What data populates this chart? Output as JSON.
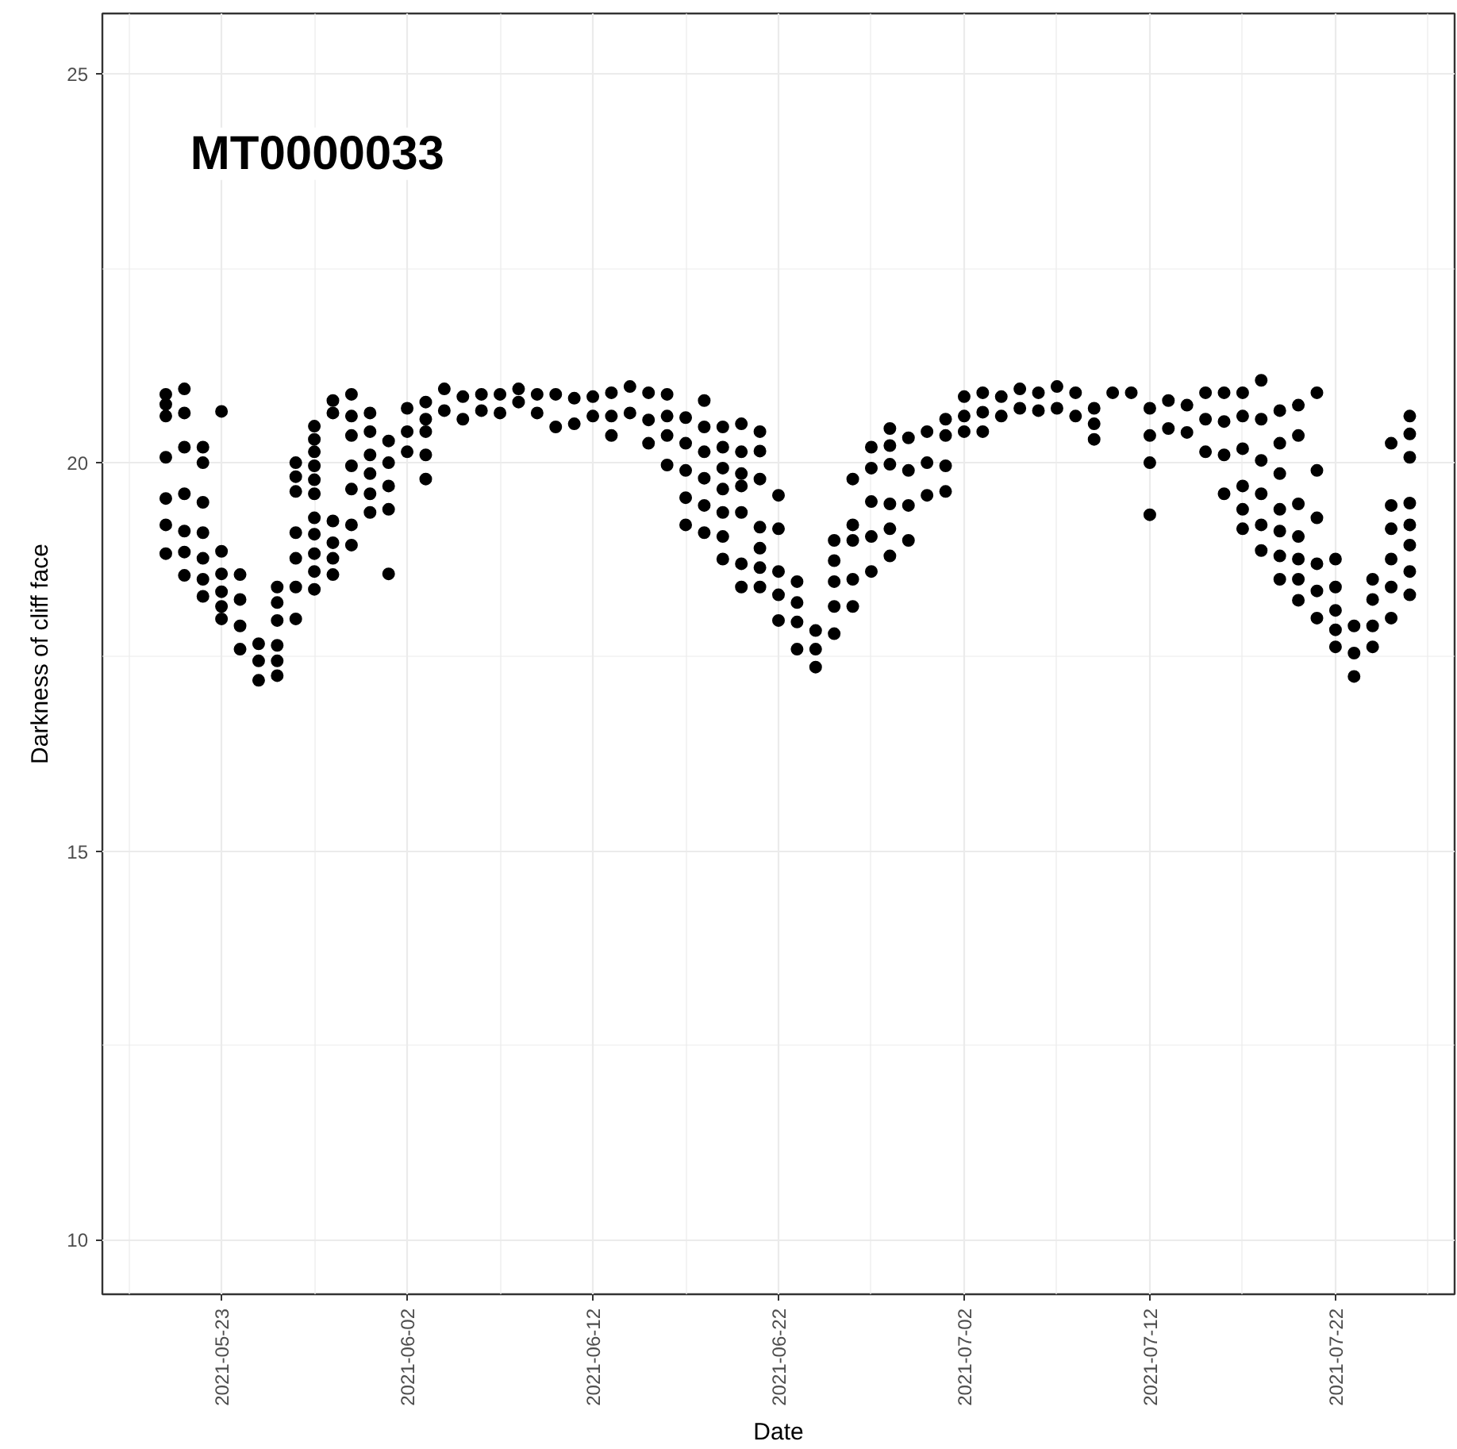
{
  "chart_data": {
    "type": "scatter",
    "title": "MT0000033",
    "xlabel": "Date",
    "ylabel": "Darkness of cliff face",
    "xlim": [
      "2021-05-16T14:00",
      "2021-07-28T10:00"
    ],
    "xticks": [
      "2021-05-23",
      "2021-06-02",
      "2021-06-12",
      "2021-06-22",
      "2021-07-02",
      "2021-07-12",
      "2021-07-22"
    ],
    "ylim": [
      9.3,
      25.78
    ],
    "yticks": [
      10,
      15,
      20,
      25
    ],
    "grid": true,
    "marker": "circle",
    "series": [
      {
        "color": "#000000",
        "x": [
          "2021-05-20",
          "2021-05-20",
          "2021-05-20",
          "2021-05-20",
          "2021-05-20",
          "2021-05-20",
          "2021-05-20",
          "2021-05-21",
          "2021-05-21",
          "2021-05-21",
          "2021-05-21",
          "2021-05-21",
          "2021-05-21",
          "2021-05-21",
          "2021-05-22",
          "2021-05-22",
          "2021-05-22",
          "2021-05-22",
          "2021-05-22",
          "2021-05-22",
          "2021-05-22",
          "2021-05-23",
          "2021-05-23",
          "2021-05-23",
          "2021-05-23",
          "2021-05-23",
          "2021-05-23",
          "2021-05-24",
          "2021-05-24",
          "2021-05-24",
          "2021-05-24",
          "2021-05-25",
          "2021-05-25",
          "2021-05-25",
          "2021-05-26",
          "2021-05-26",
          "2021-05-26",
          "2021-05-26",
          "2021-05-26",
          "2021-05-26",
          "2021-05-27",
          "2021-05-27",
          "2021-05-27",
          "2021-05-27",
          "2021-05-27",
          "2021-05-27",
          "2021-05-27",
          "2021-05-28",
          "2021-05-28",
          "2021-05-28",
          "2021-05-28",
          "2021-05-28",
          "2021-05-28",
          "2021-05-28",
          "2021-05-28",
          "2021-05-28",
          "2021-05-28",
          "2021-05-28",
          "2021-05-29",
          "2021-05-29",
          "2021-05-29",
          "2021-05-29",
          "2021-05-29",
          "2021-05-29",
          "2021-05-30",
          "2021-05-30",
          "2021-05-30",
          "2021-05-30",
          "2021-05-30",
          "2021-05-30",
          "2021-05-30",
          "2021-05-31",
          "2021-05-31",
          "2021-05-31",
          "2021-05-31",
          "2021-05-31",
          "2021-05-31",
          "2021-06-01",
          "2021-06-01",
          "2021-06-01",
          "2021-06-01",
          "2021-06-01",
          "2021-06-02",
          "2021-06-02",
          "2021-06-02",
          "2021-06-03",
          "2021-06-03",
          "2021-06-03",
          "2021-06-03",
          "2021-06-03",
          "2021-06-04",
          "2021-06-04",
          "2021-06-05",
          "2021-06-05",
          "2021-06-06",
          "2021-06-06",
          "2021-06-07",
          "2021-06-07",
          "2021-06-08",
          "2021-06-08",
          "2021-06-09",
          "2021-06-09",
          "2021-06-10",
          "2021-06-10",
          "2021-06-11",
          "2021-06-11",
          "2021-06-12",
          "2021-06-12",
          "2021-06-13",
          "2021-06-13",
          "2021-06-13",
          "2021-06-14",
          "2021-06-14",
          "2021-06-15",
          "2021-06-15",
          "2021-06-15",
          "2021-06-16",
          "2021-06-16",
          "2021-06-16",
          "2021-06-16",
          "2021-06-17",
          "2021-06-17",
          "2021-06-17",
          "2021-06-17",
          "2021-06-17",
          "2021-06-18",
          "2021-06-18",
          "2021-06-18",
          "2021-06-18",
          "2021-06-18",
          "2021-06-18",
          "2021-06-19",
          "2021-06-19",
          "2021-06-19",
          "2021-06-19",
          "2021-06-19",
          "2021-06-19",
          "2021-06-19",
          "2021-06-20",
          "2021-06-20",
          "2021-06-20",
          "2021-06-20",
          "2021-06-20",
          "2021-06-20",
          "2021-06-20",
          "2021-06-21",
          "2021-06-21",
          "2021-06-21",
          "2021-06-21",
          "2021-06-21",
          "2021-06-21",
          "2021-06-21",
          "2021-06-22",
          "2021-06-22",
          "2021-06-22",
          "2021-06-22",
          "2021-06-22",
          "2021-06-23",
          "2021-06-23",
          "2021-06-23",
          "2021-06-23",
          "2021-06-24",
          "2021-06-24",
          "2021-06-24",
          "2021-06-25",
          "2021-06-25",
          "2021-06-25",
          "2021-06-25",
          "2021-06-25",
          "2021-06-26",
          "2021-06-26",
          "2021-06-26",
          "2021-06-26",
          "2021-06-26",
          "2021-06-27",
          "2021-06-27",
          "2021-06-27",
          "2021-06-27",
          "2021-06-27",
          "2021-06-28",
          "2021-06-28",
          "2021-06-28",
          "2021-06-28",
          "2021-06-28",
          "2021-06-28",
          "2021-06-29",
          "2021-06-29",
          "2021-06-29",
          "2021-06-29",
          "2021-06-30",
          "2021-06-30",
          "2021-06-30",
          "2021-07-01",
          "2021-07-01",
          "2021-07-01",
          "2021-07-01",
          "2021-07-02",
          "2021-07-02",
          "2021-07-02",
          "2021-07-03",
          "2021-07-03",
          "2021-07-03",
          "2021-07-04",
          "2021-07-04",
          "2021-07-05",
          "2021-07-05",
          "2021-07-06",
          "2021-07-06",
          "2021-07-07",
          "2021-07-07",
          "2021-07-08",
          "2021-07-08",
          "2021-07-09",
          "2021-07-09",
          "2021-07-09",
          "2021-07-10",
          "2021-07-11",
          "2021-07-12",
          "2021-07-12",
          "2021-07-12",
          "2021-07-12",
          "2021-07-13",
          "2021-07-13",
          "2021-07-14",
          "2021-07-14",
          "2021-07-15",
          "2021-07-15",
          "2021-07-15",
          "2021-07-16",
          "2021-07-16",
          "2021-07-16",
          "2021-07-16",
          "2021-07-17",
          "2021-07-17",
          "2021-07-17",
          "2021-07-17",
          "2021-07-17",
          "2021-07-17",
          "2021-07-18",
          "2021-07-18",
          "2021-07-18",
          "2021-07-18",
          "2021-07-18",
          "2021-07-18",
          "2021-07-19",
          "2021-07-19",
          "2021-07-19",
          "2021-07-19",
          "2021-07-19",
          "2021-07-19",
          "2021-07-19",
          "2021-07-20",
          "2021-07-20",
          "2021-07-20",
          "2021-07-20",
          "2021-07-20",
          "2021-07-20",
          "2021-07-20",
          "2021-07-21",
          "2021-07-21",
          "2021-07-21",
          "2021-07-21",
          "2021-07-21",
          "2021-07-21",
          "2021-07-22",
          "2021-07-22",
          "2021-07-22",
          "2021-07-22",
          "2021-07-22",
          "2021-07-23",
          "2021-07-23",
          "2021-07-23",
          "2021-07-24",
          "2021-07-24",
          "2021-07-24",
          "2021-07-24",
          "2021-07-25",
          "2021-07-25",
          "2021-07-25",
          "2021-07-25",
          "2021-07-25",
          "2021-07-25",
          "2021-07-26",
          "2021-07-26",
          "2021-07-26",
          "2021-07-26",
          "2021-07-26",
          "2021-07-26",
          "2021-07-26",
          "2021-07-26"
        ],
        "values": [
          20.88,
          20.75,
          20.6,
          20.07,
          19.54,
          19.2,
          18.83,
          20.95,
          20.64,
          20.2,
          19.6,
          19.12,
          18.85,
          18.55,
          20.2,
          20.0,
          19.49,
          19.1,
          18.77,
          18.5,
          18.28,
          20.66,
          18.86,
          18.57,
          18.34,
          18.15,
          17.99,
          18.56,
          18.24,
          17.9,
          17.6,
          17.67,
          17.45,
          17.2,
          18.4,
          18.2,
          17.97,
          17.65,
          17.45,
          17.26,
          20.0,
          19.82,
          19.63,
          19.1,
          18.77,
          18.4,
          17.99,
          20.47,
          20.3,
          20.14,
          19.96,
          19.78,
          19.6,
          19.29,
          19.08,
          18.83,
          18.6,
          18.37,
          20.8,
          20.64,
          19.25,
          18.97,
          18.77,
          18.56,
          20.88,
          20.6,
          20.35,
          19.96,
          19.66,
          19.2,
          18.94,
          20.64,
          20.4,
          20.1,
          19.86,
          19.6,
          19.36,
          20.28,
          20.0,
          19.7,
          19.4,
          18.57,
          20.7,
          20.4,
          20.14,
          20.78,
          20.56,
          20.4,
          20.1,
          19.79,
          20.95,
          20.67,
          20.85,
          20.56,
          20.88,
          20.67,
          20.88,
          20.64,
          20.95,
          20.78,
          20.88,
          20.64,
          20.88,
          20.46,
          20.83,
          20.5,
          20.85,
          20.6,
          20.9,
          20.6,
          20.35,
          20.98,
          20.64,
          20.9,
          20.55,
          20.25,
          20.88,
          20.6,
          20.35,
          19.97,
          20.58,
          20.25,
          19.9,
          19.55,
          19.2,
          20.8,
          20.46,
          20.14,
          19.8,
          19.45,
          19.1,
          20.46,
          20.2,
          19.93,
          19.66,
          19.36,
          19.05,
          18.76,
          20.5,
          20.14,
          19.86,
          19.7,
          19.36,
          18.7,
          18.4,
          20.4,
          20.15,
          19.79,
          19.17,
          18.9,
          18.65,
          18.4,
          19.58,
          19.15,
          18.6,
          18.3,
          17.97,
          18.47,
          18.2,
          17.95,
          17.6,
          17.84,
          17.6,
          17.37,
          19.0,
          18.74,
          18.47,
          18.15,
          17.8,
          19.79,
          19.2,
          19.0,
          18.5,
          18.15,
          20.2,
          19.93,
          19.5,
          19.05,
          18.6,
          20.44,
          20.22,
          19.98,
          19.47,
          19.15,
          18.8,
          20.32,
          19.9,
          19.45,
          19.0,
          20.4,
          20.0,
          19.58,
          20.56,
          20.35,
          19.96,
          19.63,
          20.85,
          20.6,
          20.4,
          20.9,
          20.65,
          20.4,
          20.85,
          20.6,
          20.95,
          20.7,
          20.9,
          20.67,
          20.98,
          20.7,
          20.9,
          20.6,
          20.7,
          20.5,
          20.3,
          20.9,
          20.9,
          20.7,
          20.35,
          20.0,
          19.33,
          20.8,
          20.44,
          20.74,
          20.39,
          20.9,
          20.56,
          20.14,
          20.9,
          20.53,
          20.1,
          19.6,
          20.9,
          20.6,
          20.18,
          19.7,
          19.4,
          19.15,
          21.06,
          20.56,
          20.03,
          19.6,
          19.2,
          18.87,
          20.67,
          20.25,
          19.86,
          19.4,
          19.12,
          18.8,
          18.5,
          20.74,
          20.35,
          19.47,
          19.05,
          18.76,
          18.5,
          18.23,
          20.9,
          19.9,
          19.29,
          18.7,
          18.35,
          18.0,
          18.76,
          18.4,
          18.1,
          17.85,
          17.63,
          17.9,
          17.55,
          17.25,
          18.5,
          18.24,
          17.9,
          17.63,
          20.25,
          19.45,
          19.15,
          18.76,
          18.4,
          18.0,
          20.6,
          20.37,
          20.07,
          19.48,
          19.2,
          18.94,
          18.6,
          18.3
        ]
      }
    ]
  }
}
